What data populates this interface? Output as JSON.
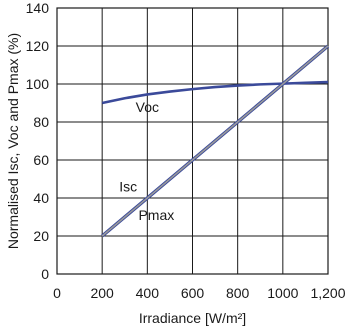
{
  "chart_data": {
    "type": "line",
    "title": "",
    "xlabel": "Irradiance [W/m²]",
    "ylabel": "Normalised Isc, Voc and Pmax (%)",
    "xlim": [
      0,
      1200
    ],
    "ylim": [
      0,
      140
    ],
    "x_ticks": [
      0,
      200,
      400,
      600,
      800,
      1000,
      1200
    ],
    "x_tick_labels": [
      "0",
      "200",
      "400",
      "600",
      "800",
      "1000",
      "1,200"
    ],
    "y_ticks": [
      0,
      20,
      40,
      60,
      80,
      100,
      120,
      140
    ],
    "y_tick_labels": [
      "0",
      "20",
      "40",
      "60",
      "80",
      "100",
      "120",
      "140"
    ],
    "grid": true,
    "series": [
      {
        "name": "Voc",
        "color": "#3b4a9a",
        "x": [
          200,
          300,
          400,
          500,
          600,
          700,
          800,
          900,
          1000,
          1100,
          1200
        ],
        "y": [
          90,
          92.5,
          94.5,
          96,
          97.3,
          98.4,
          99.2,
          99.8,
          100.2,
          100.6,
          101
        ]
      },
      {
        "name": "Isc",
        "color": "#3b4a9a",
        "x": [
          200,
          1200
        ],
        "y": [
          20,
          120
        ]
      },
      {
        "name": "Pmax",
        "color": "#9a9a9a",
        "x": [
          200,
          1200
        ],
        "y": [
          20,
          120
        ]
      }
    ],
    "annotations": [
      {
        "text": "Voc",
        "x": 400,
        "y": 88
      },
      {
        "text": "Isc",
        "x": 315,
        "y": 46
      },
      {
        "text": "Pmax",
        "x": 440,
        "y": 31
      }
    ]
  }
}
